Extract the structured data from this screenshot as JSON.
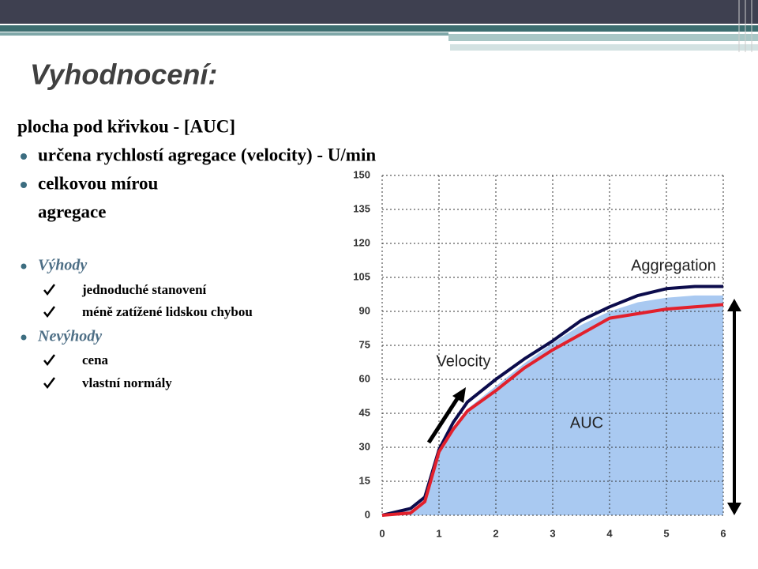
{
  "slide": {
    "title": "Vyhodnocení:",
    "heading": "plocha pod křivkou - [AUC]",
    "bullets": [
      [
        "určena rychlostí agregace (velocity) - U/min"
      ],
      [
        "celkovou mírou",
        "agregace"
      ]
    ],
    "groups": [
      {
        "label": "Výhody",
        "items": [
          "jednoduché stanovení",
          "méně zatížené lidskou chybou"
        ]
      },
      {
        "label": "Nevýhody",
        "items": [
          "cena",
          "vlastní normály"
        ]
      }
    ]
  },
  "chart_data": {
    "type": "line",
    "x": [
      0,
      0.5,
      0.75,
      1,
      1.25,
      1.5,
      2,
      2.5,
      3,
      3.5,
      4,
      4.5,
      5,
      5.5,
      6
    ],
    "series": [
      {
        "color": "#a9c9f1",
        "fill": true,
        "values": [
          0,
          2,
          6,
          28,
          39,
          47,
          57,
          67,
          76,
          84,
          90,
          94,
          96,
          97,
          97
        ]
      },
      {
        "color": "#0c0c4c",
        "values": [
          0,
          3,
          8,
          29,
          41,
          50,
          60,
          69,
          77,
          86,
          92,
          97,
          100,
          101,
          101
        ]
      },
      {
        "color": "#e2202c",
        "values": [
          0,
          1,
          6,
          28,
          38,
          46,
          55,
          65,
          73,
          80,
          87,
          89,
          91,
          92,
          93
        ]
      }
    ],
    "xlim": [
      0,
      6
    ],
    "xticks": [
      0,
      1,
      2,
      3,
      4,
      5,
      6
    ],
    "ylim": [
      0,
      150
    ],
    "yticks": [
      0,
      15,
      30,
      45,
      60,
      75,
      90,
      105,
      120,
      135,
      150
    ],
    "grid": true,
    "annotations": [
      "Aggregation",
      "Velocity",
      "AUC"
    ]
  }
}
